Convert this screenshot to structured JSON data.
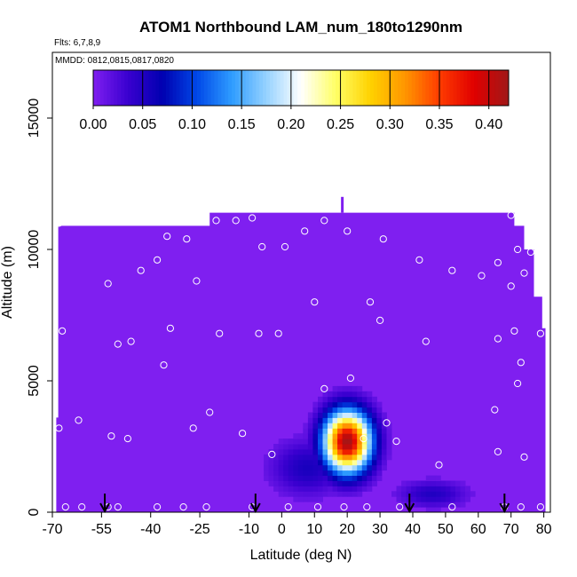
{
  "chart_data": {
    "type": "heatmap",
    "title": "ATOM1 Northbound LAM_num_180to1290nm",
    "flights_label": "Flts: 6,7,8,9",
    "dates_label": "MMDD: 0812,0815,0817,0820",
    "xlabel": "Latitude (deg N)",
    "ylabel": "Altitude (m)",
    "xlim": [
      -70,
      82
    ],
    "ylim": [
      0,
      17500
    ],
    "x_ticks": [
      -70,
      -55,
      -40,
      -25,
      -10,
      0,
      10,
      20,
      30,
      40,
      50,
      60,
      70,
      80
    ],
    "x_tick_labels": [
      "-70",
      "-55",
      "-40",
      "-25",
      "-10",
      "0",
      "10",
      "20",
      "30",
      "40",
      "50",
      "60",
      "70",
      "80"
    ],
    "y_ticks": [
      0,
      5000,
      10000,
      15000
    ],
    "y_tick_labels": [
      "0",
      "5000",
      "10000",
      "15000"
    ],
    "colorbar": {
      "min": 0.0,
      "max": 0.42,
      "ticks": [
        0.0,
        0.05,
        0.1,
        0.15,
        0.2,
        0.25,
        0.3,
        0.35,
        0.4
      ],
      "tick_labels": [
        "0.00",
        "0.05",
        "0.10",
        "0.15",
        "0.20",
        "0.25",
        "0.30",
        "0.35",
        "0.40"
      ],
      "colors": [
        "#7f1ff0",
        "#3a00d0",
        "#0000b0",
        "#0048e8",
        "#2e9cff",
        "#96d2ff",
        "#ffffff",
        "#ffff66",
        "#ffd200",
        "#ff9600",
        "#ff3c00",
        "#e00000",
        "#a01818"
      ]
    },
    "background_value": 0.0,
    "domain_outline": [
      [
        -68.8,
        0
      ],
      [
        -68.8,
        3600
      ],
      [
        -68.2,
        3600
      ],
      [
        -68.2,
        10900
      ],
      [
        -22,
        10900
      ],
      [
        -22,
        11400
      ],
      [
        71,
        11400
      ],
      [
        71,
        10900
      ],
      [
        74,
        10900
      ],
      [
        74,
        10000
      ],
      [
        77,
        10000
      ],
      [
        77,
        8200
      ],
      [
        79.5,
        8200
      ],
      [
        79.5,
        7000
      ],
      [
        80.5,
        7000
      ],
      [
        80.5,
        0
      ]
    ],
    "domain_spike": {
      "lat": 18.5,
      "alt_from": 11400,
      "alt_to": 12000
    },
    "plumes": [
      {
        "lat": 20,
        "alt": 2700,
        "lat_width": 9,
        "alt_width": 1450,
        "peak": 0.42
      },
      {
        "lat": 8,
        "alt": 1700,
        "lat_width": 14,
        "alt_width": 1300,
        "peak": 0.055
      },
      {
        "lat": 46,
        "alt": 700,
        "lat_width": 13,
        "alt_width": 650,
        "peak": 0.05
      }
    ],
    "sample_points": [
      [
        -68,
        11000
      ],
      [
        -67,
        6900
      ],
      [
        -68,
        3200
      ],
      [
        -62,
        3500
      ],
      [
        -53,
        8700
      ],
      [
        -50,
        6400
      ],
      [
        -46,
        6500
      ],
      [
        -52,
        2900
      ],
      [
        -47,
        2800
      ],
      [
        -43,
        9200
      ],
      [
        -38,
        9600
      ],
      [
        -35,
        10500
      ],
      [
        -36,
        5600
      ],
      [
        -34,
        7000
      ],
      [
        -29,
        10400
      ],
      [
        -26,
        8800
      ],
      [
        -27,
        3200
      ],
      [
        -22,
        3800
      ],
      [
        -20,
        11100
      ],
      [
        -14,
        11100
      ],
      [
        -9,
        11200
      ],
      [
        -19,
        6800
      ],
      [
        -12,
        3000
      ],
      [
        -6,
        10100
      ],
      [
        1,
        10100
      ],
      [
        -7,
        6800
      ],
      [
        -1,
        6800
      ],
      [
        -3,
        2200
      ],
      [
        7,
        10700
      ],
      [
        13,
        11100
      ],
      [
        10,
        8000
      ],
      [
        20,
        10700
      ],
      [
        27,
        8000
      ],
      [
        31,
        10400
      ],
      [
        30,
        7300
      ],
      [
        13,
        4700
      ],
      [
        21,
        5100
      ],
      [
        32,
        3400
      ],
      [
        35,
        2700
      ],
      [
        42,
        9600
      ],
      [
        44,
        6500
      ],
      [
        52,
        9200
      ],
      [
        61,
        9000
      ],
      [
        66,
        9500
      ],
      [
        70,
        8600
      ],
      [
        74,
        9100
      ],
      [
        76,
        9900
      ],
      [
        70,
        11300
      ],
      [
        72,
        10000
      ],
      [
        71,
        6900
      ],
      [
        79,
        6800
      ],
      [
        66,
        6600
      ],
      [
        73,
        5700
      ],
      [
        72,
        4900
      ],
      [
        65,
        3900
      ],
      [
        66,
        2300
      ],
      [
        74,
        2100
      ],
      [
        48,
        1800
      ],
      [
        25,
        2800
      ],
      [
        -66,
        200
      ],
      [
        -61,
        200
      ],
      [
        -53,
        200
      ],
      [
        -50,
        200
      ],
      [
        -38,
        200
      ],
      [
        -30,
        200
      ],
      [
        -23,
        200
      ],
      [
        -9,
        200
      ],
      [
        2,
        200
      ],
      [
        11,
        200
      ],
      [
        19,
        200
      ],
      [
        26,
        200
      ],
      [
        36,
        200
      ],
      [
        52,
        200
      ],
      [
        68,
        200
      ],
      [
        73,
        200
      ],
      [
        79,
        200
      ]
    ],
    "arrows": [
      -54,
      -8,
      39,
      68
    ]
  }
}
